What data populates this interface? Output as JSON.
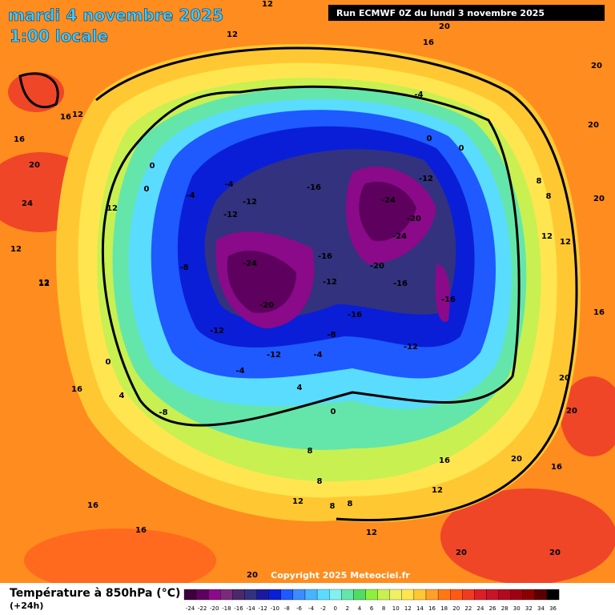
{
  "header": {
    "date": "mardi 4 novembre 2025",
    "time": "1:00 locale",
    "run": "Run ECMWF 0Z du lundi 3 novembre 2025"
  },
  "copyright": "Copyright 2025 Meteociel.fr",
  "footer": {
    "title": "Température à 850hPa (°C)",
    "lead": "(+24h)"
  },
  "legend": {
    "labels": [
      "-24",
      "-22",
      "-20",
      "-18",
      "-16",
      "-14",
      "-12",
      "-10",
      "-8",
      "-6",
      "-4",
      "-2",
      "0",
      "2",
      "4",
      "6",
      "8",
      "10",
      "12",
      "14",
      "16",
      "18",
      "20",
      "22",
      "24",
      "26",
      "28",
      "30",
      "32",
      "34",
      "36"
    ],
    "colors": [
      "#3c003c",
      "#5e005e",
      "#8a0a8a",
      "#7a2a7a",
      "#4a2a6a",
      "#32327e",
      "#1a1aa0",
      "#0a1ed8",
      "#1e5aff",
      "#3c8cff",
      "#46b4ff",
      "#5adcff",
      "#82f0f0",
      "#64e6aa",
      "#50dc64",
      "#8cf03c",
      "#c8f050",
      "#f0f064",
      "#ffe650",
      "#ffc832",
      "#ffa028",
      "#ff7814",
      "#ff5a14",
      "#f03c1e",
      "#dc1e28",
      "#c81428",
      "#b40a1e",
      "#a00014",
      "#8c0000",
      "#5a0000",
      "#000000"
    ]
  },
  "map": {
    "contour_labels": [
      "12",
      "12",
      "16",
      "20",
      "16",
      "12",
      "12",
      "16",
      "20",
      "24",
      "20",
      "12",
      "12",
      "0",
      "0",
      "-4",
      "-4",
      "-12",
      "-12",
      "-8",
      "-16",
      "-24",
      "-20",
      "-24",
      "-12",
      "-4",
      "0",
      "0",
      "-24",
      "-16",
      "-20",
      "-12",
      "-16",
      "-20",
      "-16",
      "-12",
      "-16",
      "-8",
      "-12",
      "-12",
      "-4",
      "-4",
      "0",
      "4",
      "-8",
      "0",
      "4",
      "8",
      "8",
      "12",
      "8",
      "8",
      "12",
      "16",
      "12",
      "16",
      "20",
      "20",
      "20",
      "16",
      "20",
      "20",
      "12",
      "12",
      "16",
      "16",
      "8",
      "8",
      "20",
      "20",
      "16",
      "12",
      "20"
    ]
  }
}
